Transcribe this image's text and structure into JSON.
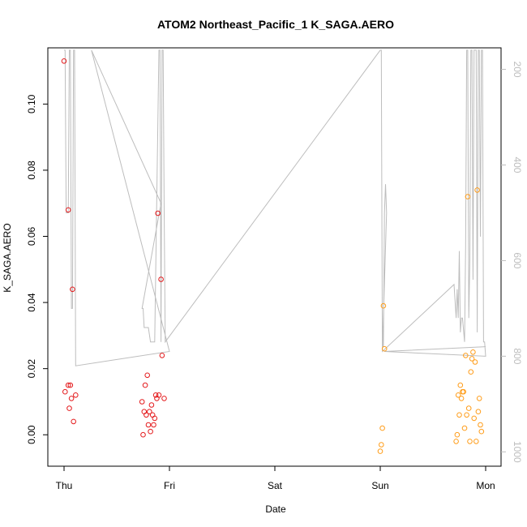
{
  "chart_data": {
    "type": "scatter",
    "title": "ATOM2 Northeast_Pacific_1 K_SAGA.AERO",
    "xlabel": "Date",
    "ylabel": "K_SAGA.AERO",
    "x_tick_labels": [
      "Thu",
      "Fri",
      "Sat",
      "Sun",
      "Mon"
    ],
    "ylim": [
      -0.0095,
      0.117
    ],
    "y_ticks": [
      "0.00",
      "0.02",
      "0.04",
      "0.06",
      "0.08",
      "0.10"
    ],
    "y2_ticks": [
      "200",
      "400",
      "600",
      "800",
      "1000"
    ],
    "y2lim": [
      1030,
      155
    ],
    "grid": false,
    "colors": {
      "series_1": "#e41a1c",
      "series_2": "#ff9d1a",
      "altitude_trace": "#bdbdbd",
      "axis": "#000000"
    },
    "series": [
      {
        "points": [
          {
            "x": 0.0,
            "y": 0.113
          },
          {
            "x": 0.01,
            "y": 0.013
          },
          {
            "x": 0.04,
            "y": 0.068
          },
          {
            "x": 0.04,
            "y": 0.015
          },
          {
            "x": 0.06,
            "y": 0.015
          },
          {
            "x": 0.05,
            "y": 0.008
          },
          {
            "x": 0.08,
            "y": 0.044
          },
          {
            "x": 0.07,
            "y": 0.011
          },
          {
            "x": 0.09,
            "y": 0.004
          },
          {
            "x": 0.11,
            "y": 0.012
          },
          {
            "x": 0.74,
            "y": 0.01
          },
          {
            "x": 0.76,
            "y": 0.007
          },
          {
            "x": 0.77,
            "y": 0.015
          },
          {
            "x": 0.75,
            "y": 0.0
          },
          {
            "x": 0.79,
            "y": 0.018
          },
          {
            "x": 0.78,
            "y": 0.006
          },
          {
            "x": 0.8,
            "y": 0.003
          },
          {
            "x": 0.81,
            "y": 0.007
          },
          {
            "x": 0.82,
            "y": 0.001
          },
          {
            "x": 0.83,
            "y": 0.009
          },
          {
            "x": 0.84,
            "y": 0.006
          },
          {
            "x": 0.85,
            "y": 0.003
          },
          {
            "x": 0.86,
            "y": 0.005
          },
          {
            "x": 0.89,
            "y": 0.067
          },
          {
            "x": 0.87,
            "y": 0.012
          },
          {
            "x": 0.88,
            "y": 0.011
          },
          {
            "x": 0.9,
            "y": 0.012
          },
          {
            "x": 0.92,
            "y": 0.047
          },
          {
            "x": 0.93,
            "y": 0.024
          },
          {
            "x": 0.95,
            "y": 0.011
          }
        ]
      },
      {
        "points": [
          {
            "x": 3.0,
            "y": -0.005
          },
          {
            "x": 3.01,
            "y": -0.003
          },
          {
            "x": 3.02,
            "y": 0.002
          },
          {
            "x": 3.03,
            "y": 0.039
          },
          {
            "x": 3.04,
            "y": 0.026
          },
          {
            "x": 3.72,
            "y": -0.002
          },
          {
            "x": 3.73,
            "y": 0.0
          },
          {
            "x": 3.74,
            "y": 0.012
          },
          {
            "x": 3.75,
            "y": 0.006
          },
          {
            "x": 3.76,
            "y": 0.015
          },
          {
            "x": 3.77,
            "y": 0.011
          },
          {
            "x": 3.78,
            "y": 0.013
          },
          {
            "x": 3.79,
            "y": 0.013
          },
          {
            "x": 3.8,
            "y": 0.002
          },
          {
            "x": 3.81,
            "y": 0.024
          },
          {
            "x": 3.82,
            "y": 0.006
          },
          {
            "x": 3.83,
            "y": 0.072
          },
          {
            "x": 3.84,
            "y": 0.008
          },
          {
            "x": 3.85,
            "y": -0.002
          },
          {
            "x": 3.86,
            "y": 0.019
          },
          {
            "x": 3.87,
            "y": 0.023
          },
          {
            "x": 3.88,
            "y": 0.025
          },
          {
            "x": 3.89,
            "y": 0.005
          },
          {
            "x": 3.9,
            "y": 0.022
          },
          {
            "x": 3.91,
            "y": -0.002
          },
          {
            "x": 3.92,
            "y": 0.074
          },
          {
            "x": 3.93,
            "y": 0.007
          },
          {
            "x": 3.94,
            "y": 0.011
          },
          {
            "x": 3.95,
            "y": 0.003
          },
          {
            "x": 3.96,
            "y": 0.001
          }
        ]
      }
    ],
    "altitude_trace": [
      [
        0.0,
        160
      ],
      [
        0.01,
        160
      ],
      [
        0.02,
        500
      ],
      [
        0.03,
        500
      ],
      [
        0.04,
        500
      ],
      [
        0.05,
        160
      ],
      [
        0.06,
        160
      ],
      [
        0.07,
        700
      ],
      [
        0.08,
        700
      ],
      [
        0.09,
        160
      ],
      [
        0.1,
        160
      ],
      [
        0.11,
        820
      ],
      [
        1.0,
        790
      ],
      [
        0.26,
        160
      ],
      [
        0.92,
        480
      ],
      [
        0.74,
        700
      ],
      [
        0.75,
        700
      ],
      [
        0.76,
        740
      ],
      [
        0.77,
        740
      ],
      [
        0.78,
        740
      ],
      [
        0.8,
        740
      ],
      [
        0.82,
        770
      ],
      [
        0.85,
        770
      ],
      [
        0.86,
        770
      ],
      [
        0.9,
        160
      ],
      [
        0.91,
        160
      ],
      [
        0.92,
        770
      ],
      [
        0.93,
        160
      ],
      [
        0.94,
        160
      ],
      [
        0.95,
        500
      ],
      [
        0.96,
        770
      ],
      [
        3.0,
        160
      ],
      [
        3.01,
        160
      ],
      [
        3.02,
        780
      ],
      [
        3.03,
        780
      ],
      [
        3.04,
        500
      ],
      [
        3.05,
        440
      ],
      [
        3.06,
        500
      ],
      [
        3.02,
        790
      ],
      [
        3.7,
        650
      ],
      [
        3.7,
        650
      ],
      [
        3.72,
        720
      ],
      [
        3.73,
        660
      ],
      [
        3.74,
        720
      ],
      [
        3.75,
        580
      ],
      [
        3.76,
        750
      ],
      [
        3.77,
        720
      ],
      [
        3.78,
        720
      ],
      [
        3.8,
        770
      ],
      [
        3.81,
        570
      ],
      [
        3.82,
        160
      ],
      [
        3.83,
        160
      ],
      [
        3.84,
        720
      ],
      [
        3.85,
        600
      ],
      [
        3.86,
        160
      ],
      [
        3.87,
        160
      ],
      [
        3.88,
        640
      ],
      [
        3.89,
        160
      ],
      [
        3.9,
        160
      ],
      [
        3.91,
        160
      ],
      [
        3.92,
        750
      ],
      [
        3.93,
        160
      ],
      [
        3.94,
        160
      ],
      [
        3.95,
        550
      ],
      [
        3.96,
        160
      ],
      [
        3.97,
        160
      ],
      [
        3.98,
        770
      ],
      [
        3.99,
        770
      ],
      [
        4.0,
        800
      ],
      [
        3.04,
        790
      ],
      [
        4.0,
        780
      ]
    ]
  }
}
